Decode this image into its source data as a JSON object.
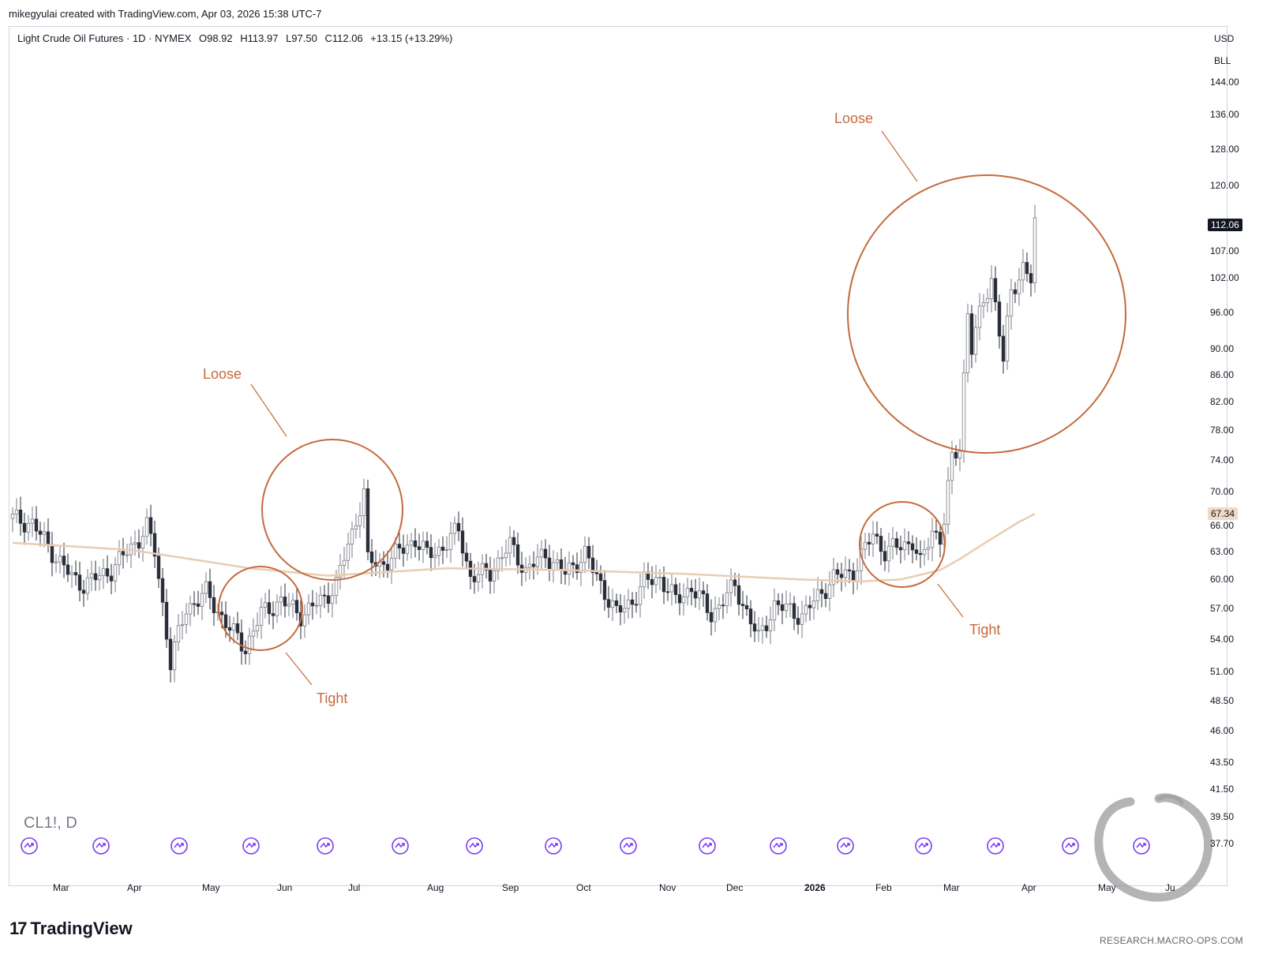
{
  "header": {
    "creator_line": "mikegyulai created with TradingView.com, Apr 03, 2026 15:38 UTC-7"
  },
  "legend": {
    "title": "Light Crude Oil Futures · 1D · NYMEX",
    "open": "O98.92",
    "high": "H113.97",
    "low": "L97.50",
    "close": "C112.06",
    "change": "+13.15 (+13.29%)"
  },
  "symbol_label": "CL1!, D",
  "axis_units": {
    "currency": "USD",
    "unit": "BLL"
  },
  "badges": {
    "last_price": "112.06",
    "moving_average": "67.34"
  },
  "annotations": {
    "loose_1": "Loose",
    "tight_1": "Tight",
    "loose_2": "Loose",
    "tight_2": "Tight"
  },
  "footer": {
    "brand": "TradingView",
    "watermark": "RESEARCH.MACRO-OPS.COM"
  },
  "colors": {
    "annotation": "#c56a3d",
    "ma_line": "#e8cdb3",
    "candle_down": "#2a2e39",
    "candle_up_border": "#787b86",
    "event_icon": "#7b3ff2"
  },
  "event_icon_name": "events-arrow-icon",
  "chart_data": {
    "type": "candlestick",
    "title": "Light Crude Oil Futures · 1D · NYMEX",
    "y_scale": "log",
    "ylim": [
      35.5,
      150
    ],
    "y_ticks": [
      "144.00",
      "136.00",
      "128.00",
      "120.00",
      "107.00",
      "102.00",
      "96.00",
      "90.00",
      "86.00",
      "82.00",
      "78.00",
      "74.00",
      "70.00",
      "66.00",
      "63.00",
      "60.00",
      "57.00",
      "54.00",
      "51.00",
      "48.50",
      "46.00",
      "43.50",
      "41.50",
      "39.50",
      "37.70"
    ],
    "x_ticks": [
      {
        "label": "Mar",
        "bold": false
      },
      {
        "label": "Apr",
        "bold": false
      },
      {
        "label": "May",
        "bold": false
      },
      {
        "label": "Jun",
        "bold": false
      },
      {
        "label": "Jul",
        "bold": false
      },
      {
        "label": "Aug",
        "bold": false
      },
      {
        "label": "Sep",
        "bold": false
      },
      {
        "label": "Oct",
        "bold": false
      },
      {
        "label": "Nov",
        "bold": false
      },
      {
        "label": "Dec",
        "bold": false
      },
      {
        "label": "2026",
        "bold": true
      },
      {
        "label": "Feb",
        "bold": false
      },
      {
        "label": "Mar",
        "bold": false
      },
      {
        "label": "Apr",
        "bold": false
      },
      {
        "label": "May",
        "bold": false
      },
      {
        "label": "Ju",
        "bold": false
      }
    ],
    "events_count": 16,
    "close_anchors": [
      [
        0,
        66.8
      ],
      [
        5,
        66.2
      ],
      [
        10,
        63.0
      ],
      [
        15,
        60.2
      ],
      [
        18,
        59.5
      ],
      [
        25,
        61.0
      ],
      [
        32,
        64.5
      ],
      [
        34,
        65.8
      ],
      [
        36,
        63.0
      ],
      [
        40,
        51.8
      ],
      [
        44,
        57.0
      ],
      [
        49,
        58.6
      ],
      [
        55,
        55.0
      ],
      [
        59,
        53.2
      ],
      [
        63,
        56.5
      ],
      [
        68,
        57.8
      ],
      [
        73,
        56.4
      ],
      [
        79,
        58.0
      ],
      [
        82,
        59.6
      ],
      [
        86,
        65.0
      ],
      [
        89,
        70.0
      ],
      [
        90,
        62.0
      ],
      [
        93,
        61.5
      ],
      [
        98,
        63.0
      ],
      [
        102,
        64.4
      ],
      [
        105,
        62.6
      ],
      [
        109,
        63.5
      ],
      [
        113,
        65.5
      ],
      [
        116,
        60.2
      ],
      [
        121,
        60.8
      ],
      [
        126,
        63.7
      ],
      [
        130,
        61.0
      ],
      [
        135,
        62.7
      ],
      [
        140,
        60.6
      ],
      [
        145,
        62.8
      ],
      [
        147,
        61.0
      ],
      [
        153,
        56.5
      ],
      [
        157,
        57.8
      ],
      [
        160,
        59.7
      ],
      [
        164,
        60.2
      ],
      [
        168,
        57.8
      ],
      [
        172,
        59.2
      ],
      [
        177,
        56.4
      ],
      [
        183,
        59.3
      ],
      [
        189,
        54.0
      ],
      [
        193,
        57.4
      ],
      [
        200,
        56.3
      ],
      [
        203,
        57.7
      ],
      [
        208,
        60.2
      ],
      [
        213,
        60.8
      ],
      [
        218,
        65.0
      ],
      [
        221,
        63.0
      ],
      [
        228,
        64.2
      ],
      [
        230,
        61.5
      ],
      [
        233,
        65.5
      ],
      [
        235,
        64.5
      ],
      [
        236,
        66.6
      ],
      [
        238,
        74.0
      ],
      [
        240,
        76.0
      ],
      [
        242,
        96.0
      ],
      [
        243,
        90.0
      ],
      [
        246,
        98.0
      ],
      [
        248,
        102.0
      ],
      [
        251,
        88.0
      ],
      [
        253,
        99.5
      ],
      [
        256,
        104.0
      ],
      [
        258,
        101.5
      ],
      [
        259,
        112.06
      ]
    ],
    "ma_anchors": [
      [
        0,
        64.0
      ],
      [
        30,
        63.2
      ],
      [
        60,
        61.2
      ],
      [
        80,
        60.4
      ],
      [
        110,
        61.2
      ],
      [
        140,
        61.0
      ],
      [
        170,
        60.6
      ],
      [
        200,
        60.0
      ],
      [
        215,
        59.8
      ],
      [
        225,
        60.0
      ],
      [
        235,
        61.0
      ],
      [
        240,
        62.2
      ],
      [
        245,
        63.6
      ],
      [
        250,
        65.0
      ],
      [
        255,
        66.4
      ],
      [
        259,
        67.34
      ]
    ],
    "last_close": 112.06,
    "last_ma": 67.34
  }
}
